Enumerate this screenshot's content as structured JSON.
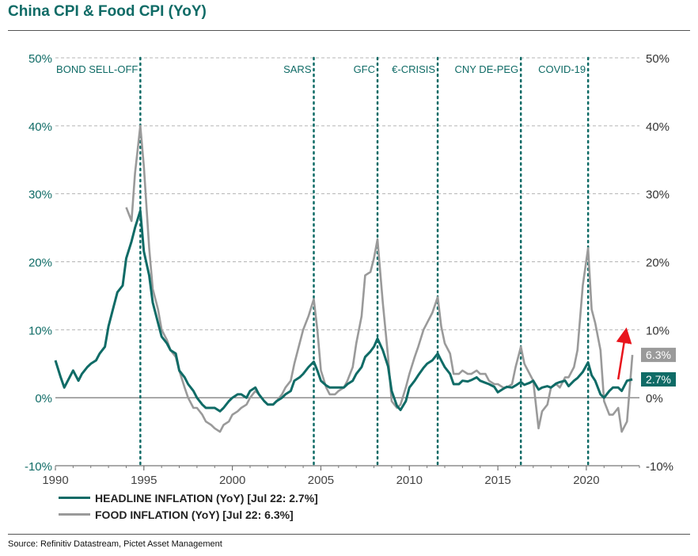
{
  "title": "China CPI & Food CPI (YoY)",
  "source": "Source: Refinitiv Datastream, Pictet Asset Management",
  "colors": {
    "headline": "#0f6b66",
    "food": "#9a9a9a",
    "axis_text": "#0f6b66",
    "arrow": "#e8141c"
  },
  "chart_data": {
    "type": "line",
    "title": "China CPI & Food CPI (YoY)",
    "xlabel": "",
    "ylabel": "",
    "xlim": [
      1990,
      2023
    ],
    "ylim": [
      -10,
      50
    ],
    "grid": true,
    "y_ticks": [
      "-10%",
      "0%",
      "10%",
      "20%",
      "30%",
      "40%",
      "50%"
    ],
    "x_ticks": [
      "1990",
      "1995",
      "2000",
      "2005",
      "2010",
      "2015",
      "2020"
    ],
    "events": [
      {
        "label": "BOND SELL-OFF",
        "x": 1994.8
      },
      {
        "label": "SARS",
        "x": 2004.6
      },
      {
        "label": "GFC",
        "x": 2008.2
      },
      {
        "label": "€-CRISIS",
        "x": 2011.6
      },
      {
        "label": "CNY DE-PEG",
        "x": 2016.3
      },
      {
        "label": "COVID-19",
        "x": 2020.1
      }
    ],
    "series": [
      {
        "name": "HEADLINE INFLATION (YoY) [Jul 22: 2.7%]",
        "end_label": "2.7%",
        "x": [
          1990.0,
          1990.3,
          1990.5,
          1990.8,
          1991.0,
          1991.3,
          1991.5,
          1991.8,
          1992.0,
          1992.3,
          1992.5,
          1992.8,
          1993.0,
          1993.3,
          1993.5,
          1993.8,
          1994.0,
          1994.3,
          1994.5,
          1994.8,
          1995.0,
          1995.3,
          1995.5,
          1995.8,
          1996.0,
          1996.3,
          1996.5,
          1996.8,
          1997.0,
          1997.3,
          1997.5,
          1997.8,
          1998.0,
          1998.3,
          1998.5,
          1998.8,
          1999.0,
          1999.3,
          1999.5,
          1999.8,
          2000.0,
          2000.3,
          2000.5,
          2000.8,
          2001.0,
          2001.3,
          2001.5,
          2001.8,
          2002.0,
          2002.3,
          2002.5,
          2002.8,
          2003.0,
          2003.3,
          2003.5,
          2003.8,
          2004.0,
          2004.3,
          2004.6,
          2004.8,
          2005.0,
          2005.3,
          2005.5,
          2005.8,
          2006.0,
          2006.3,
          2006.5,
          2006.8,
          2007.0,
          2007.3,
          2007.5,
          2007.8,
          2008.0,
          2008.2,
          2008.5,
          2008.8,
          2009.0,
          2009.3,
          2009.5,
          2009.8,
          2010.0,
          2010.3,
          2010.5,
          2010.8,
          2011.0,
          2011.3,
          2011.6,
          2011.8,
          2012.0,
          2012.3,
          2012.5,
          2012.8,
          2013.0,
          2013.3,
          2013.5,
          2013.8,
          2014.0,
          2014.3,
          2014.5,
          2014.8,
          2015.0,
          2015.3,
          2015.5,
          2015.8,
          2016.0,
          2016.3,
          2016.5,
          2016.8,
          2017.0,
          2017.3,
          2017.5,
          2017.8,
          2018.0,
          2018.3,
          2018.5,
          2018.8,
          2019.0,
          2019.3,
          2019.5,
          2019.8,
          2020.1,
          2020.3,
          2020.5,
          2020.8,
          2021.0,
          2021.3,
          2021.5,
          2021.8,
          2022.0,
          2022.3,
          2022.6
        ],
        "values": [
          5.5,
          3.0,
          1.5,
          3.0,
          4.0,
          2.5,
          3.5,
          4.5,
          5.0,
          5.5,
          6.5,
          7.5,
          10.5,
          13.5,
          15.5,
          16.5,
          20.5,
          23.0,
          25.0,
          27.5,
          21.5,
          18.0,
          14.0,
          11.0,
          9.0,
          8.0,
          7.0,
          6.5,
          4.0,
          3.0,
          2.0,
          1.0,
          0.0,
          -1.0,
          -1.5,
          -1.5,
          -1.5,
          -2.0,
          -1.5,
          -0.5,
          0.0,
          0.5,
          0.5,
          0.0,
          1.0,
          1.5,
          0.5,
          -0.5,
          -1.0,
          -1.0,
          -0.5,
          0.0,
          0.5,
          1.0,
          2.5,
          3.0,
          3.5,
          4.5,
          5.3,
          4.0,
          2.5,
          1.8,
          1.5,
          1.5,
          1.5,
          1.5,
          2.0,
          2.5,
          3.5,
          4.5,
          6.0,
          6.8,
          7.5,
          8.7,
          7.0,
          4.6,
          1.0,
          -1.2,
          -1.8,
          -0.5,
          1.5,
          2.5,
          3.3,
          4.4,
          5.0,
          5.5,
          6.5,
          5.5,
          4.5,
          3.5,
          2.0,
          2.0,
          2.5,
          2.4,
          2.6,
          3.0,
          2.5,
          2.2,
          2.0,
          1.6,
          0.8,
          1.3,
          1.6,
          1.5,
          1.8,
          2.3,
          1.9,
          2.2,
          2.5,
          1.2,
          1.5,
          1.7,
          1.5,
          2.1,
          2.3,
          2.5,
          1.7,
          2.5,
          2.9,
          3.8,
          5.2,
          3.3,
          2.5,
          0.5,
          0.0,
          1.0,
          1.5,
          1.5,
          1.0,
          2.5,
          2.7
        ]
      },
      {
        "name": "FOOD INFLATION (YoY) [Jul 22: 6.3%]",
        "end_label": "6.3%",
        "x": [
          1994.0,
          1994.3,
          1994.5,
          1994.8,
          1995.0,
          1995.3,
          1995.5,
          1995.8,
          1996.0,
          1996.3,
          1996.5,
          1996.8,
          1997.0,
          1997.3,
          1997.5,
          1997.8,
          1998.0,
          1998.3,
          1998.5,
          1998.8,
          1999.0,
          1999.3,
          1999.5,
          1999.8,
          2000.0,
          2000.3,
          2000.5,
          2000.8,
          2001.0,
          2001.3,
          2001.5,
          2001.8,
          2002.0,
          2002.3,
          2002.5,
          2002.8,
          2003.0,
          2003.3,
          2003.5,
          2003.8,
          2004.0,
          2004.3,
          2004.6,
          2004.8,
          2005.0,
          2005.3,
          2005.5,
          2005.8,
          2006.0,
          2006.3,
          2006.5,
          2006.8,
          2007.0,
          2007.3,
          2007.5,
          2007.8,
          2008.0,
          2008.2,
          2008.5,
          2008.8,
          2009.0,
          2009.3,
          2009.5,
          2009.8,
          2010.0,
          2010.3,
          2010.5,
          2010.8,
          2011.0,
          2011.3,
          2011.6,
          2011.8,
          2012.0,
          2012.3,
          2012.5,
          2012.8,
          2013.0,
          2013.3,
          2013.5,
          2013.8,
          2014.0,
          2014.3,
          2014.5,
          2014.8,
          2015.0,
          2015.3,
          2015.5,
          2015.8,
          2016.0,
          2016.3,
          2016.5,
          2016.8,
          2017.0,
          2017.3,
          2017.5,
          2017.8,
          2018.0,
          2018.3,
          2018.5,
          2018.8,
          2019.0,
          2019.3,
          2019.5,
          2019.8,
          2020.1,
          2020.3,
          2020.5,
          2020.8,
          2021.0,
          2021.3,
          2021.5,
          2021.8,
          2022.0,
          2022.3,
          2022.6
        ],
        "values": [
          28.0,
          26.0,
          33.0,
          40.0,
          34.0,
          22.0,
          16.0,
          13.0,
          10.0,
          8.5,
          7.0,
          6.0,
          4.0,
          1.5,
          0.0,
          -1.5,
          -1.5,
          -2.5,
          -3.5,
          -4.0,
          -4.5,
          -5.0,
          -4.0,
          -3.5,
          -2.5,
          -2.0,
          -1.5,
          -1.0,
          0.0,
          1.0,
          0.5,
          -0.5,
          -1.0,
          -1.0,
          -0.5,
          0.5,
          1.5,
          2.5,
          5.0,
          8.0,
          10.0,
          12.0,
          14.5,
          10.0,
          4.0,
          1.5,
          0.5,
          0.5,
          1.0,
          1.5,
          2.5,
          4.5,
          8.0,
          12.0,
          18.0,
          18.5,
          20.5,
          23.3,
          14.0,
          6.0,
          -0.5,
          -1.5,
          -1.0,
          1.5,
          3.5,
          6.0,
          7.5,
          10.0,
          11.0,
          12.5,
          14.8,
          10.5,
          8.0,
          6.5,
          3.5,
          3.5,
          4.0,
          3.5,
          3.5,
          4.0,
          3.5,
          3.5,
          2.5,
          2.0,
          2.0,
          1.5,
          1.5,
          2.0,
          4.5,
          7.5,
          5.0,
          3.5,
          2.5,
          -4.5,
          -2.0,
          -1.0,
          1.5,
          2.0,
          1.5,
          3.0,
          3.0,
          4.5,
          7.0,
          16.5,
          22.0,
          13.0,
          11.0,
          7.0,
          -0.5,
          -2.5,
          -2.5,
          -1.5,
          -5.0,
          -3.5,
          6.3
        ]
      }
    ]
  }
}
